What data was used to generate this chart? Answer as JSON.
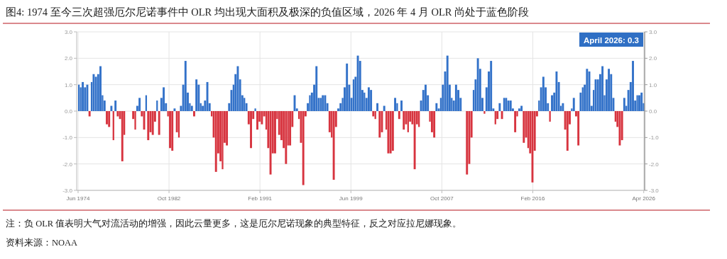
{
  "chart_data": {
    "type": "bar",
    "title": "图4:  1974 至今三次超强厄尔尼诺事件中 OLR 均出现大面积及极深的负值区域，2026 年 4 月 OLR 尚处于蓝色阶段",
    "annotations": [
      "April 2026: 0.3",
      "注：负 OLR 值表明大气对流活动的增强，因此云量更多，这是厄尔尼诺现象的典型特征，反之对应拉尼娜现象。",
      "资料来源：NOAA"
    ],
    "x": [
      "1974-07",
      "1974-09",
      "1974-11",
      "1975-02",
      "1975-04",
      "1975-07",
      "1975-09",
      "1975-11",
      "1976-02",
      "1976-04",
      "1976-07",
      "1976-09",
      "1976-11",
      "1977-02",
      "1977-04",
      "1977-07",
      "1977-09",
      "1977-11",
      "1978-02",
      "1978-04",
      "1978-07",
      "1978-09",
      "1978-11",
      "1979-02",
      "1979-04",
      "1979-07",
      "1979-09",
      "1979-11",
      "1980-02",
      "1980-04",
      "1980-07",
      "1980-09",
      "1980-11",
      "1981-02",
      "1981-04",
      "1981-07",
      "1981-09",
      "1981-11",
      "1982-02",
      "1982-04",
      "1982-07",
      "1982-09",
      "1982-11",
      "1983-02",
      "1983-04",
      "1983-07",
      "1983-09",
      "1983-11",
      "1984-02",
      "1984-04",
      "1984-07",
      "1984-09",
      "1984-11",
      "1985-02",
      "1985-04",
      "1985-07",
      "1985-09",
      "1985-11",
      "1986-02",
      "1986-04",
      "1986-07",
      "1986-09",
      "1986-11",
      "1987-02",
      "1987-04",
      "1987-07",
      "1987-09",
      "1987-11",
      "1988-02",
      "1988-04",
      "1988-07",
      "1988-09",
      "1988-11",
      "1989-02",
      "1989-04",
      "1989-07",
      "1989-09",
      "1989-11",
      "1990-02",
      "1990-04",
      "1990-07",
      "1990-09",
      "1990-11",
      "1991-02",
      "1991-04",
      "1991-07",
      "1991-09",
      "1991-11",
      "1992-02",
      "1992-04",
      "1992-07",
      "1992-09",
      "1992-11",
      "1993-02",
      "1993-04",
      "1993-07",
      "1993-09",
      "1993-11",
      "1994-02",
      "1994-04",
      "1994-07",
      "1994-09",
      "1994-11",
      "1995-02",
      "1995-04",
      "1995-07",
      "1995-09",
      "1995-11",
      "1996-02",
      "1996-04",
      "1996-07",
      "1996-09",
      "1996-11",
      "1997-02",
      "1997-04",
      "1997-07",
      "1997-09",
      "1997-11",
      "1998-02",
      "1998-04",
      "1998-07",
      "1998-09",
      "1998-11",
      "1999-02",
      "1999-04",
      "1999-07",
      "1999-09",
      "1999-11",
      "2000-02",
      "2000-04",
      "2000-07",
      "2000-09",
      "2000-11",
      "2001-02",
      "2001-04",
      "2001-07",
      "2001-09",
      "2001-11",
      "2002-02",
      "2002-04",
      "2002-07",
      "2002-09",
      "2002-11",
      "2003-02",
      "2003-04",
      "2003-07",
      "2003-09",
      "2003-11",
      "2004-02",
      "2004-04",
      "2004-07",
      "2004-09",
      "2004-11",
      "2005-02",
      "2005-04",
      "2005-07",
      "2005-09",
      "2005-11",
      "2006-02",
      "2006-04",
      "2006-07",
      "2006-09",
      "2006-11",
      "2007-02",
      "2007-04",
      "2007-07",
      "2007-09",
      "2007-11",
      "2008-02",
      "2008-04",
      "2008-07",
      "2008-09",
      "2008-11",
      "2009-02",
      "2009-04",
      "2009-07",
      "2009-09",
      "2009-11",
      "2010-02",
      "2010-04",
      "2010-07",
      "2010-09",
      "2010-11",
      "2011-02",
      "2011-04",
      "2011-07",
      "2011-09",
      "2011-11",
      "2012-02",
      "2012-04",
      "2012-07",
      "2012-09",
      "2012-11",
      "2013-02",
      "2013-04",
      "2013-07",
      "2013-09",
      "2013-11",
      "2014-02",
      "2014-04",
      "2014-07",
      "2014-09",
      "2014-11",
      "2015-02",
      "2015-04",
      "2015-07",
      "2015-09",
      "2015-11",
      "2016-02",
      "2016-04",
      "2016-07",
      "2016-09",
      "2016-11",
      "2017-02",
      "2017-04",
      "2017-07",
      "2017-09",
      "2017-11",
      "2018-02",
      "2018-04",
      "2018-07",
      "2018-09",
      "2018-11",
      "2019-02",
      "2019-04",
      "2019-07",
      "2019-09",
      "2019-11",
      "2020-02",
      "2020-04",
      "2020-07",
      "2020-09",
      "2020-11",
      "2021-02",
      "2021-04",
      "2021-07",
      "2021-09",
      "2021-11",
      "2022-02",
      "2022-04",
      "2022-07",
      "2022-09",
      "2022-11",
      "2023-02",
      "2023-04",
      "2023-07",
      "2023-09",
      "2023-11",
      "2024-02",
      "2024-04",
      "2024-07",
      "2024-09",
      "2024-11",
      "2025-02",
      "2025-04",
      "2025-07",
      "2025-09",
      "2025-11",
      "2026-02",
      "2026-04"
    ],
    "values": [
      1.0,
      0.9,
      1.1,
      0.9,
      1.0,
      -0.2,
      1.1,
      1.4,
      1.3,
      1.4,
      1.7,
      0.6,
      0.4,
      -0.5,
      -0.6,
      0.2,
      -1.1,
      0.4,
      -0.2,
      -0.3,
      -1.9,
      -0.9,
      0,
      0,
      0,
      -0.3,
      -0.7,
      0.2,
      0.5,
      -0.2,
      -0.7,
      0.6,
      -1.1,
      -0.8,
      -0.9,
      -0.4,
      0.4,
      -0.9,
      0.5,
      0.9,
      0.3,
      -0.2,
      -1.4,
      -1.5,
      0.1,
      -0.8,
      -1.0,
      0.2,
      1.0,
      1.9,
      0.7,
      0.3,
      0.2,
      -0.2,
      1.2,
      1.0,
      0.3,
      0.2,
      0.4,
      1.1,
      0.3,
      -0.2,
      -1.0,
      -2.3,
      -1.6,
      -1.9,
      -2.2,
      -1.2,
      -1.3,
      0.3,
      0.8,
      1.0,
      1.4,
      1.7,
      1.2,
      0.6,
      0.5,
      0.3,
      -0.5,
      -1.4,
      -0.3,
      0.1,
      -0.7,
      -0.4,
      -0.5,
      -0.2,
      -0.7,
      -1.4,
      -2.4,
      -1.6,
      -1.6,
      -0.3,
      -0.9,
      -1.1,
      -1.4,
      -2.0,
      -1.3,
      -1.3,
      -0.6,
      0.6,
      0.1,
      -0.3,
      -1.2,
      -2.8,
      -0.2,
      0.3,
      0.6,
      0.7,
      1.0,
      1.7,
      0.5,
      0.5,
      0.6,
      0.6,
      0.3,
      -0.8,
      -1.0,
      -2.6,
      -0.6,
      0.1,
      0.3,
      0.5,
      0.9,
      1.8,
      1.0,
      0.5,
      1.2,
      1.3,
      2.1,
      1.9,
      0.8,
      0.7,
      0.5,
      0.9,
      0.8,
      -0.2,
      -0.3,
      0.3,
      -1.0,
      -0.8,
      0.2,
      -0.7,
      -1.6,
      -1.6,
      -1.5,
      0.5,
      0.3,
      -0.3,
      0.4,
      -0.7,
      -0.5,
      -0.8,
      -0.4,
      -0.5,
      -2.2,
      -0.5,
      -0.6,
      0.4,
      0.8,
      1.0,
      0.6,
      -0.4,
      -0.8,
      -1.0,
      0.3,
      0.1,
      0.5,
      1.0,
      1.5,
      2.1,
      1.0,
      0.5,
      0.4,
      1.0,
      0.8,
      0.5,
      0,
      0,
      -2.4,
      -2.0,
      -1.0,
      0.8,
      1.2,
      2.0,
      1.6,
      0.5,
      -0.1,
      0.9,
      1.5,
      1.9,
      0.1,
      -0.5,
      -0.3,
      0.3,
      -0.3,
      0.5,
      0.5,
      0.4,
      0.4,
      0.1,
      -0.8,
      -0.2,
      0.1,
      0.2,
      -1.2,
      -1.0,
      -1.4,
      -1.6,
      -2.7,
      -1.5,
      -0.2,
      0.4,
      0.9,
      1.3,
      0.9,
      0.3,
      -0.4,
      0.6,
      0.7,
      1.5,
      1.1,
      0.2,
      0.3,
      -0.7,
      -1.5,
      -0.5,
      0.1,
      0.5,
      -0.2,
      -1.3,
      0.7,
      0.9,
      1.0,
      1.6,
      1.5,
      0.2,
      0.8,
      1.2,
      1.2,
      1.4,
      1.7,
      0.6,
      1.2,
      1.6,
      1.4,
      0.5,
      -0.4,
      -0.6,
      -1.3,
      -1.1,
      0.5,
      0.2,
      0.8,
      1.1,
      1.9,
      0.4,
      0.6,
      0.6,
      0.7,
      0.3
    ],
    "colors": [
      "#3372c9",
      "#3372c9",
      "#3372c9",
      "#3372c9",
      "#3372c9",
      "#d7343f",
      "#3372c9",
      "#3372c9",
      "#3372c9",
      "#3372c9",
      "#3372c9",
      "#3372c9",
      "#3372c9",
      "#d7343f",
      "#d7343f",
      "#3372c9",
      "#d7343f",
      "#3372c9",
      "#d7343f",
      "#d7343f",
      "#d7343f",
      "#d7343f",
      "#3372c9",
      "#3372c9",
      "#3372c9",
      "#d7343f",
      "#d7343f",
      "#3372c9",
      "#3372c9",
      "#d7343f",
      "#d7343f",
      "#3372c9",
      "#d7343f",
      "#d7343f",
      "#d7343f",
      "#d7343f",
      "#3372c9",
      "#d7343f",
      "#3372c9",
      "#3372c9",
      "#3372c9",
      "#d7343f",
      "#d7343f",
      "#d7343f",
      "#3372c9",
      "#d7343f",
      "#d7343f",
      "#3372c9",
      "#3372c9",
      "#3372c9",
      "#3372c9",
      "#3372c9",
      "#3372c9",
      "#d7343f",
      "#3372c9",
      "#3372c9",
      "#3372c9",
      "#3372c9",
      "#3372c9",
      "#3372c9",
      "#3372c9",
      "#d7343f",
      "#d7343f",
      "#d7343f",
      "#d7343f",
      "#d7343f",
      "#d7343f",
      "#d7343f",
      "#d7343f",
      "#3372c9",
      "#3372c9",
      "#3372c9",
      "#3372c9",
      "#3372c9",
      "#3372c9",
      "#3372c9",
      "#3372c9",
      "#3372c9",
      "#d7343f",
      "#d7343f",
      "#d7343f",
      "#3372c9",
      "#d7343f",
      "#d7343f",
      "#d7343f",
      "#d7343f",
      "#d7343f",
      "#d7343f",
      "#d7343f",
      "#d7343f",
      "#d7343f",
      "#d7343f",
      "#d7343f",
      "#d7343f",
      "#d7343f",
      "#d7343f",
      "#d7343f",
      "#d7343f",
      "#d7343f",
      "#3372c9",
      "#3372c9",
      "#d7343f",
      "#d7343f",
      "#d7343f",
      "#d7343f",
      "#3372c9",
      "#3372c9",
      "#3372c9",
      "#3372c9",
      "#3372c9",
      "#3372c9",
      "#3372c9",
      "#3372c9",
      "#3372c9",
      "#3372c9",
      "#d7343f",
      "#d7343f",
      "#d7343f",
      "#d7343f",
      "#3372c9",
      "#3372c9",
      "#3372c9",
      "#3372c9",
      "#3372c9",
      "#3372c9",
      "#3372c9",
      "#3372c9",
      "#3372c9",
      "#3372c9",
      "#3372c9",
      "#3372c9",
      "#3372c9",
      "#3372c9",
      "#3372c9",
      "#3372c9",
      "#d7343f",
      "#d7343f",
      "#3372c9",
      "#d7343f",
      "#d7343f",
      "#3372c9",
      "#d7343f",
      "#d7343f",
      "#d7343f",
      "#d7343f",
      "#3372c9",
      "#3372c9",
      "#d7343f",
      "#3372c9",
      "#d7343f",
      "#d7343f",
      "#d7343f",
      "#d7343f",
      "#d7343f",
      "#d7343f",
      "#d7343f",
      "#d7343f",
      "#3372c9",
      "#3372c9",
      "#3372c9",
      "#3372c9",
      "#d7343f",
      "#d7343f",
      "#d7343f",
      "#3372c9",
      "#3372c9",
      "#3372c9",
      "#3372c9",
      "#3372c9",
      "#3372c9",
      "#3372c9",
      "#3372c9",
      "#3372c9",
      "#3372c9",
      "#3372c9",
      "#3372c9",
      "#3372c9",
      "#3372c9",
      "#d7343f",
      "#d7343f",
      "#d7343f",
      "#3372c9",
      "#3372c9",
      "#3372c9",
      "#3372c9",
      "#3372c9",
      "#d7343f",
      "#3372c9",
      "#3372c9",
      "#3372c9",
      "#3372c9",
      "#d7343f",
      "#d7343f",
      "#3372c9",
      "#d7343f",
      "#3372c9",
      "#3372c9",
      "#3372c9",
      "#3372c9",
      "#3372c9",
      "#d7343f",
      "#d7343f",
      "#3372c9",
      "#3372c9",
      "#d7343f",
      "#d7343f",
      "#d7343f",
      "#d7343f",
      "#d7343f",
      "#d7343f",
      "#d7343f",
      "#3372c9",
      "#3372c9",
      "#3372c9",
      "#3372c9",
      "#3372c9",
      "#d7343f",
      "#3372c9",
      "#3372c9",
      "#3372c9",
      "#3372c9",
      "#3372c9",
      "#3372c9",
      "#d7343f",
      "#d7343f",
      "#d7343f",
      "#3372c9",
      "#3372c9",
      "#d7343f",
      "#d7343f",
      "#3372c9",
      "#3372c9",
      "#3372c9",
      "#3372c9",
      "#3372c9",
      "#3372c9",
      "#3372c9",
      "#3372c9",
      "#3372c9",
      "#3372c9",
      "#3372c9",
      "#3372c9",
      "#3372c9",
      "#3372c9",
      "#3372c9",
      "#3372c9",
      "#d7343f",
      "#d7343f",
      "#d7343f",
      "#d7343f",
      "#3372c9",
      "#3372c9",
      "#3372c9",
      "#3372c9",
      "#3372c9",
      "#3372c9",
      "#3372c9",
      "#3372c9",
      "#3372c9",
      "#3372c9"
    ],
    "xlim": [
      "1974-04-15",
      "2026-05"
    ],
    "xticks": [
      {
        "value": "1974-06",
        "label": "Jun 1974"
      },
      {
        "value": "1982-10",
        "label": "Oct 1982"
      },
      {
        "value": "1991-02",
        "label": "Feb 1991"
      },
      {
        "value": "1999-06",
        "label": "Jun 1999"
      },
      {
        "value": "2007-10",
        "label": "Oct 2007"
      },
      {
        "value": "2016-02",
        "label": "Feb 2016"
      },
      {
        "value": "2026-04",
        "label": "Apr 2026"
      }
    ],
    "ylim": [
      -3,
      3
    ],
    "yticks": [
      {
        "value": -3,
        "label": "-3.0"
      },
      {
        "value": -2,
        "label": "-2.0"
      },
      {
        "value": -1,
        "label": "-1.0"
      },
      {
        "value": 0,
        "label": "0.0"
      },
      {
        "value": 1,
        "label": "1.0"
      },
      {
        "value": 2,
        "label": "2.0"
      },
      {
        "value": 3,
        "label": "3.0"
      }
    ],
    "y2lim": [
      -3,
      3
    ],
    "y2ticks": [
      {
        "value": -3,
        "label": "-3.0"
      },
      {
        "value": -2,
        "label": "-2.0"
      },
      {
        "value": -1,
        "label": "-1.0"
      },
      {
        "value": 0,
        "label": "0.0"
      },
      {
        "value": 1,
        "label": "1.0"
      },
      {
        "value": 2,
        "label": "2.0"
      },
      {
        "value": 3,
        "label": "3.0"
      }
    ],
    "grid": true
  }
}
